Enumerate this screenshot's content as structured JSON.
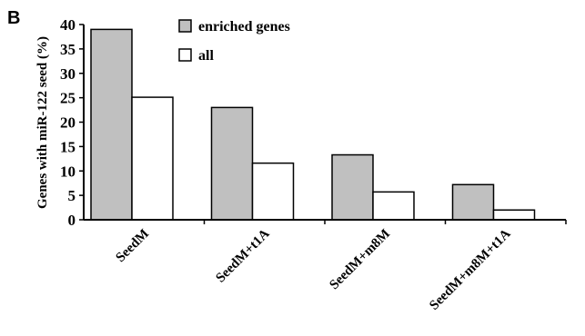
{
  "panel_label": "B",
  "chart_data": {
    "type": "bar",
    "categories": [
      "SeedM",
      "SeedM+t1A",
      "SeedM+m8M",
      "SeedM+m8M+t1A"
    ],
    "series": [
      {
        "name": "enriched genes",
        "values": [
          39.0,
          23.0,
          13.3,
          7.2
        ],
        "color": "#c0c0c0"
      },
      {
        "name": "all",
        "values": [
          25.1,
          11.6,
          5.7,
          2.0
        ],
        "color": "#ffffff"
      }
    ],
    "ylabel": "Genes with miR-122 seed (%)",
    "xlabel": "",
    "ylim": [
      0,
      40
    ],
    "yticks": [
      0,
      5,
      10,
      15,
      20,
      25,
      30,
      35,
      40
    ],
    "legend_position": "top-center",
    "grid": false
  }
}
